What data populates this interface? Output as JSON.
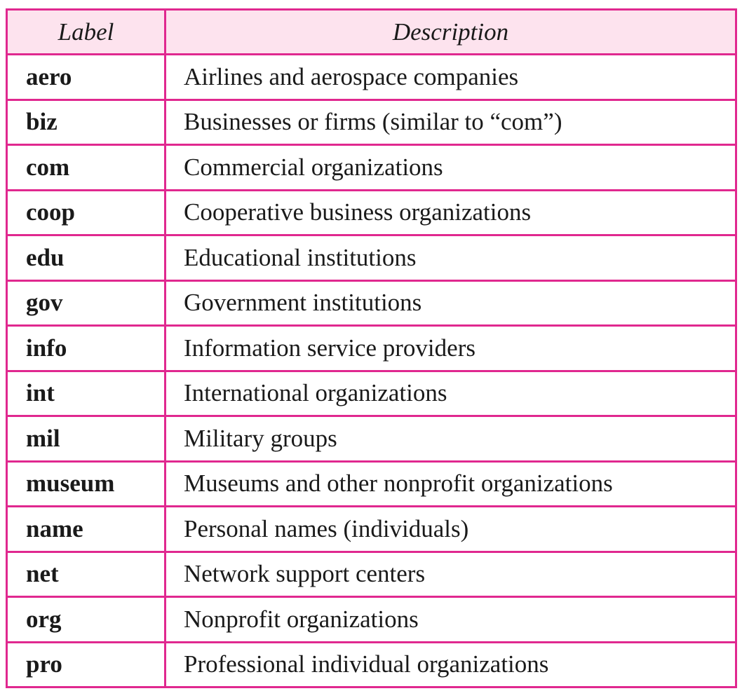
{
  "table": {
    "headers": {
      "label": "Label",
      "description": "Description"
    },
    "rows": [
      {
        "label": "aero",
        "description": "Airlines and aerospace companies"
      },
      {
        "label": "biz",
        "description": "Businesses or firms (similar to “com”)"
      },
      {
        "label": "com",
        "description": "Commercial organizations"
      },
      {
        "label": "coop",
        "description": "Cooperative business organizations"
      },
      {
        "label": "edu",
        "description": "Educational institutions"
      },
      {
        "label": "gov",
        "description": "Government institutions"
      },
      {
        "label": "info",
        "description": "Information service providers"
      },
      {
        "label": "int",
        "description": "International organizations"
      },
      {
        "label": "mil",
        "description": "Military groups"
      },
      {
        "label": "museum",
        "description": "Museums and other nonprofit organizations"
      },
      {
        "label": "name",
        "description": "Personal names (individuals)"
      },
      {
        "label": "net",
        "description": "Network support centers"
      },
      {
        "label": "org",
        "description": "Nonprofit organizations"
      },
      {
        "label": "pro",
        "description": "Professional individual organizations"
      }
    ]
  },
  "colors": {
    "border": "#e0288f",
    "header_background": "#fde3ee",
    "text": "#1a1a1a"
  }
}
